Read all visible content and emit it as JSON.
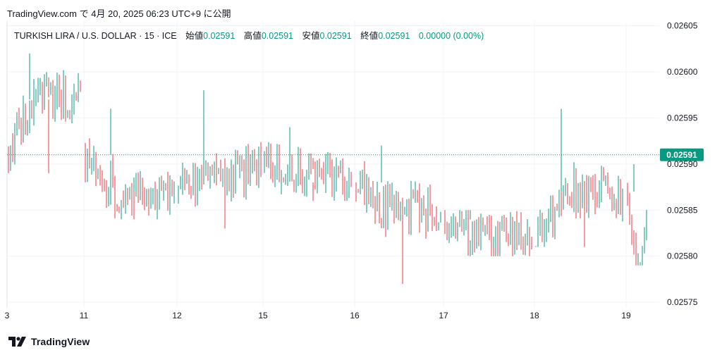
{
  "header": {
    "text": "TradingView.com で 4月 20, 2025 06:23 UTC+9 に公開"
  },
  "legend": {
    "symbol": "TURKISH LIRA / U.S. DOLLAR · 15 · ICE",
    "open_label": "始値",
    "open_value": "0.02591",
    "high_label": "高値",
    "high_value": "0.02591",
    "low_label": "安値",
    "low_value": "0.02591",
    "close_label": "終値",
    "close_value": "0.02591",
    "change": "0.00000 (0.00%)"
  },
  "footer": {
    "brand": "TradingView"
  },
  "colors": {
    "up": "#089981",
    "down": "#f23645",
    "grid": "#f0f3fa",
    "text": "#131722"
  },
  "chart_data": {
    "type": "ohlc-candlestick",
    "interval_minutes": 15,
    "y_range": [
      0.025744,
      0.026055
    ],
    "y_ticks": [
      "0.02575",
      "0.02580",
      "0.02585",
      "0.02590",
      "0.02595",
      "0.02600",
      "0.02605"
    ],
    "x_ticks": [
      "3",
      "11",
      "12",
      "15",
      "16",
      "17",
      "18",
      "19"
    ],
    "last_price": "0.02591",
    "sessions": [
      {
        "label": "3",
        "open": 0.02591,
        "close": 0.02598,
        "high": 0.02602,
        "low": 0.02589,
        "flat": 0.02597
      },
      {
        "label": "11",
        "open": 0.02591,
        "close": 0.02587,
        "high": 0.02596,
        "low": 0.02584,
        "flat": 0.02587
      },
      {
        "label": "12",
        "open": 0.02587,
        "close": 0.0259,
        "high": 0.02598,
        "low": 0.02583,
        "flat": 0.02589
      },
      {
        "label": "15",
        "open": 0.0259,
        "close": 0.02588,
        "high": 0.02594,
        "low": 0.02586,
        "flat": 0.02589
      },
      {
        "label": "16",
        "open": 0.02588,
        "close": 0.02584,
        "high": 0.02592,
        "low": 0.02577,
        "flat": 0.02585
      },
      {
        "label": "17",
        "open": 0.02584,
        "close": 0.02581,
        "high": 0.02585,
        "low": 0.0258,
        "flat": 0.02582
      },
      {
        "label": "18",
        "open": 0.02581,
        "close": 0.02587,
        "high": 0.02596,
        "low": 0.02581,
        "flat": 0.02587
      },
      {
        "label": "19",
        "open": 0.02587,
        "close": 0.02585,
        "high": 0.0259,
        "low": 0.02579,
        "flat": 0.02579
      }
    ]
  }
}
